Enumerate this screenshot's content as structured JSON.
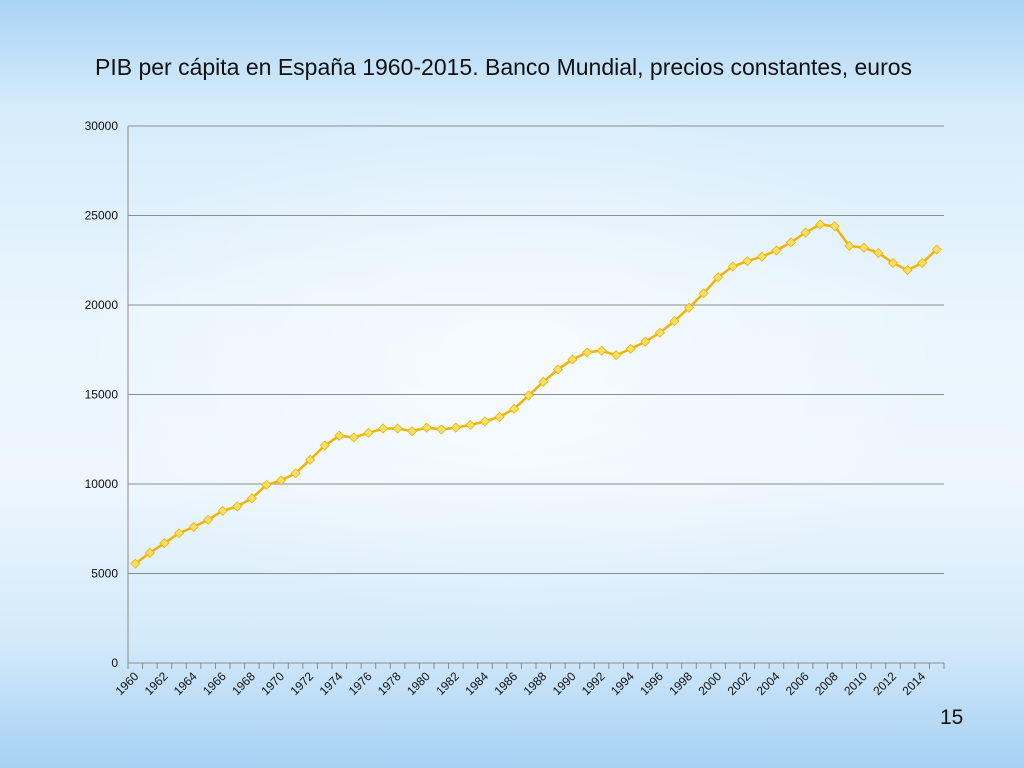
{
  "slide": {
    "title": "PIB per cápita en España 1960-2015. Banco Mundial, precios constantes, euros",
    "page_number": "15"
  },
  "colors": {
    "line": "#f2b400",
    "marker": "#f3e06a",
    "gridline": "#8c8c8c",
    "axis": "#8c8c8c"
  },
  "chart_data": {
    "type": "line",
    "title": "PIB per cápita en España 1960-2015. Banco Mundial, precios constantes, euros",
    "xlabel": "",
    "ylabel": "",
    "ylim": [
      0,
      30000
    ],
    "y_ticks": [
      0,
      5000,
      10000,
      15000,
      20000,
      25000,
      30000
    ],
    "x_tick_labels": [
      "1960",
      "1962",
      "1964",
      "1966",
      "1968",
      "1970",
      "1972",
      "1974",
      "1976",
      "1978",
      "1980",
      "1982",
      "1984",
      "1986",
      "1988",
      "1990",
      "1992",
      "1994",
      "1996",
      "1998",
      "2000",
      "2002",
      "2004",
      "2006",
      "2008",
      "2010",
      "2012",
      "2014"
    ],
    "grid": true,
    "legend": "none",
    "x": [
      1960,
      1961,
      1962,
      1963,
      1964,
      1965,
      1966,
      1967,
      1968,
      1969,
      1970,
      1971,
      1972,
      1973,
      1974,
      1975,
      1976,
      1977,
      1978,
      1979,
      1980,
      1981,
      1982,
      1983,
      1984,
      1985,
      1986,
      1987,
      1988,
      1989,
      1990,
      1991,
      1992,
      1993,
      1994,
      1995,
      1996,
      1997,
      1998,
      1999,
      2000,
      2001,
      2002,
      2003,
      2004,
      2005,
      2006,
      2007,
      2008,
      2009,
      2010,
      2011,
      2012,
      2013,
      2014,
      2015
    ],
    "series": [
      {
        "values": [
          5550,
          6150,
          6700,
          7250,
          7600,
          8000,
          8500,
          8750,
          9200,
          9950,
          10200,
          10600,
          11350,
          12150,
          12700,
          12600,
          12850,
          13100,
          13100,
          12950,
          13150,
          13050,
          13150,
          13300,
          13500,
          13750,
          14200,
          14950,
          15700,
          16400,
          16950,
          17350,
          17450,
          17200,
          17550,
          17950,
          18450,
          19100,
          19850,
          20650,
          21550,
          22150,
          22450,
          22700,
          23050,
          23500,
          24050,
          24500,
          24400,
          23300,
          23200,
          22900,
          22350,
          21950,
          22350,
          23100
        ]
      }
    ]
  }
}
